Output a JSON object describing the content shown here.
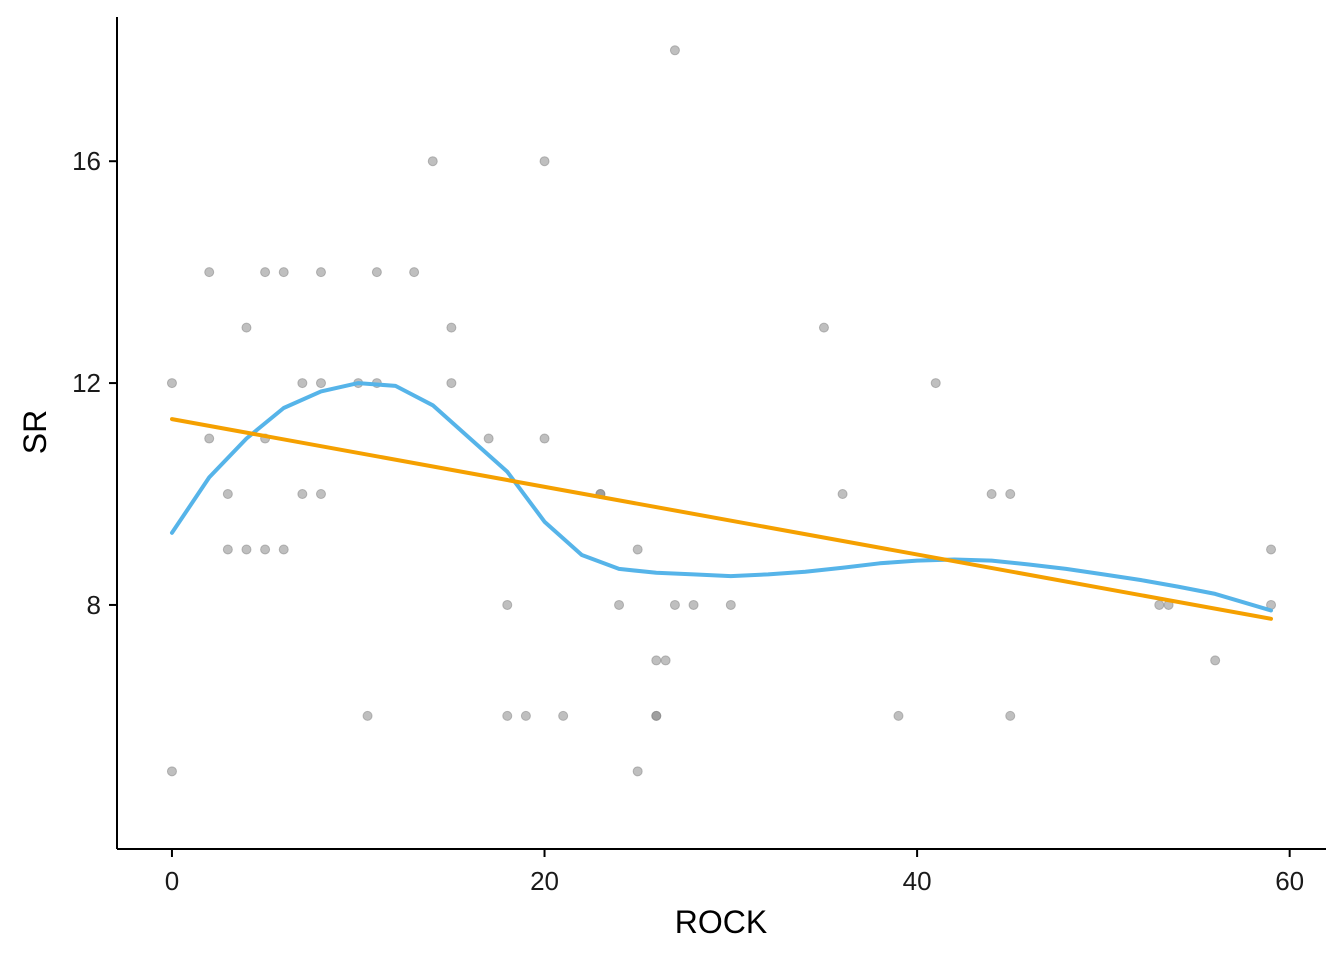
{
  "chart_data": {
    "type": "scatter",
    "xlabel": "ROCK",
    "ylabel": "SR",
    "xlim": [
      -2.95,
      61.95
    ],
    "ylim": [
      3.6,
      18.6
    ],
    "x_ticks": [
      0,
      20,
      40,
      60
    ],
    "y_ticks": [
      8,
      12,
      16
    ],
    "grid": false,
    "legend": "none",
    "point_color": "#7f7f7f",
    "point_alpha": 0.5,
    "points": [
      {
        "x": 0,
        "y": 5
      },
      {
        "x": 0,
        "y": 12
      },
      {
        "x": 2,
        "y": 14
      },
      {
        "x": 2,
        "y": 11
      },
      {
        "x": 3,
        "y": 10
      },
      {
        "x": 3,
        "y": 9
      },
      {
        "x": 4,
        "y": 13
      },
      {
        "x": 4,
        "y": 9
      },
      {
        "x": 5,
        "y": 14
      },
      {
        "x": 5,
        "y": 11
      },
      {
        "x": 5,
        "y": 9
      },
      {
        "x": 6,
        "y": 14
      },
      {
        "x": 6,
        "y": 9
      },
      {
        "x": 7,
        "y": 12
      },
      {
        "x": 7,
        "y": 10
      },
      {
        "x": 8,
        "y": 14
      },
      {
        "x": 8,
        "y": 12
      },
      {
        "x": 8,
        "y": 10
      },
      {
        "x": 10,
        "y": 12
      },
      {
        "x": 10.5,
        "y": 6
      },
      {
        "x": 11,
        "y": 14
      },
      {
        "x": 11,
        "y": 12
      },
      {
        "x": 13,
        "y": 14
      },
      {
        "x": 14,
        "y": 16
      },
      {
        "x": 15,
        "y": 13
      },
      {
        "x": 15,
        "y": 12
      },
      {
        "x": 17,
        "y": 11
      },
      {
        "x": 18,
        "y": 8
      },
      {
        "x": 18,
        "y": 6
      },
      {
        "x": 19,
        "y": 6
      },
      {
        "x": 20,
        "y": 16
      },
      {
        "x": 20,
        "y": 11
      },
      {
        "x": 21,
        "y": 6
      },
      {
        "x": 23,
        "y": 10
      },
      {
        "x": 23,
        "y": 10
      },
      {
        "x": 24,
        "y": 8
      },
      {
        "x": 25,
        "y": 9
      },
      {
        "x": 25,
        "y": 5
      },
      {
        "x": 26,
        "y": 7
      },
      {
        "x": 26,
        "y": 6
      },
      {
        "x": 26,
        "y": 6
      },
      {
        "x": 26.5,
        "y": 7
      },
      {
        "x": 27,
        "y": 18
      },
      {
        "x": 27,
        "y": 8
      },
      {
        "x": 28,
        "y": 8
      },
      {
        "x": 30,
        "y": 8
      },
      {
        "x": 35,
        "y": 13
      },
      {
        "x": 36,
        "y": 10
      },
      {
        "x": 39,
        "y": 6
      },
      {
        "x": 41,
        "y": 12
      },
      {
        "x": 44,
        "y": 10
      },
      {
        "x": 45,
        "y": 10
      },
      {
        "x": 45,
        "y": 6
      },
      {
        "x": 53,
        "y": 8
      },
      {
        "x": 53.5,
        "y": 8
      },
      {
        "x": 56,
        "y": 7
      },
      {
        "x": 59,
        "y": 9
      },
      {
        "x": 59,
        "y": 8
      }
    ],
    "series": [
      {
        "color": "#56B4E9",
        "x": [
          0,
          2,
          4,
          6,
          8,
          10,
          12,
          14,
          16,
          18,
          20,
          22,
          24,
          26,
          28,
          30,
          32,
          34,
          36,
          38,
          40,
          42,
          44,
          46,
          48,
          50,
          52,
          54,
          56,
          58,
          59
        ],
        "y": [
          9.3,
          10.3,
          11.0,
          11.55,
          11.85,
          12.0,
          11.95,
          11.6,
          11.0,
          10.4,
          9.5,
          8.9,
          8.65,
          8.58,
          8.55,
          8.52,
          8.55,
          8.6,
          8.67,
          8.75,
          8.8,
          8.82,
          8.8,
          8.73,
          8.65,
          8.55,
          8.45,
          8.33,
          8.2,
          8.0,
          7.9
        ]
      },
      {
        "color": "#F5A000",
        "x": [
          0,
          59
        ],
        "y": [
          11.35,
          7.75
        ]
      }
    ]
  }
}
